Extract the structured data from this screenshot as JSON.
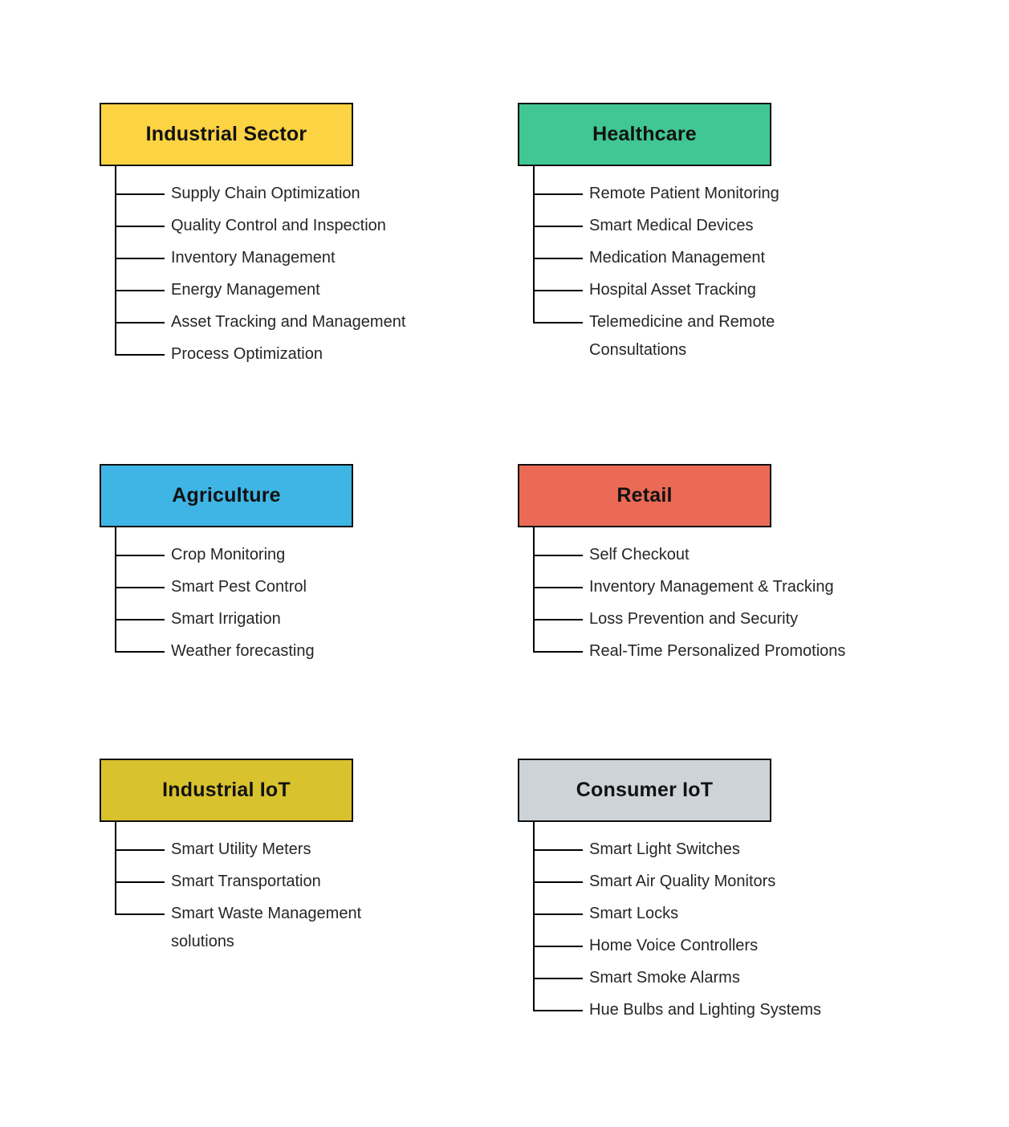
{
  "page": {
    "background": "#ffffff",
    "line_color": "#000000",
    "box_border_color": "#0f0f0f"
  },
  "categories": [
    {
      "id": "industrial-sector",
      "label": "Industrial Sector",
      "color": "#FBD343",
      "items": [
        "Supply Chain Optimization",
        "Quality Control and Inspection",
        "Inventory Management",
        "Energy Management",
        "Asset Tracking and Management",
        "Process Optimization"
      ]
    },
    {
      "id": "healthcare",
      "label": "Healthcare",
      "color": "#40C794",
      "items": [
        "Remote Patient Monitoring",
        "Smart Medical Devices",
        "Medication Management",
        "Hospital Asset Tracking",
        "Telemedicine and Remote\nConsultations"
      ]
    },
    {
      "id": "agriculture",
      "label": "Agriculture",
      "color": "#3EB5E5",
      "items": [
        "Crop Monitoring",
        "Smart Pest Control",
        "Smart Irrigation",
        "Weather forecasting"
      ]
    },
    {
      "id": "retail",
      "label": "Retail",
      "color": "#EA6A56",
      "items": [
        "Self Checkout",
        "Inventory Management & Tracking",
        "Loss Prevention and Security",
        "Real-Time Personalized Promotions"
      ]
    },
    {
      "id": "industrial-iot",
      "label": "Industrial IoT",
      "color": "#D8C22E",
      "items": [
        "Smart Utility Meters",
        "Smart Transportation",
        "Smart Waste Management\nsolutions"
      ]
    },
    {
      "id": "consumer-iot",
      "label": "Consumer IoT",
      "color": "#CED3D8",
      "items": [
        "Smart Light Switches",
        "Smart Air Quality Monitors",
        "Smart Locks",
        "Home Voice Controllers",
        "Smart Smoke Alarms",
        "Hue Bulbs and Lighting Systems"
      ]
    }
  ]
}
